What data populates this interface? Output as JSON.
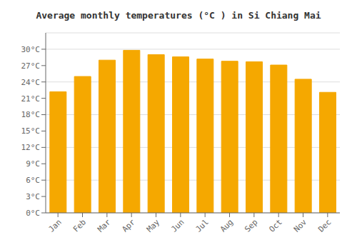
{
  "chart_data": {
    "type": "bar",
    "title": "Average monthly temperatures (°C ) in Si Chiang Mai",
    "categories": [
      "Jan",
      "Feb",
      "Mar",
      "Apr",
      "May",
      "Jun",
      "Jul",
      "Aug",
      "Sep",
      "Oct",
      "Nov",
      "Dec"
    ],
    "values": [
      22.2,
      25.0,
      28.0,
      29.8,
      29.0,
      28.6,
      28.2,
      27.8,
      27.7,
      27.1,
      24.5,
      22.1
    ],
    "color": "#F5A800",
    "ylim": [
      0,
      33
    ],
    "yticks": [
      {
        "value": 0,
        "label": "0°C"
      },
      {
        "value": 3,
        "label": "3°C"
      },
      {
        "value": 6,
        "label": "6°C"
      },
      {
        "value": 9,
        "label": "9°C"
      },
      {
        "value": 12,
        "label": "12°C"
      },
      {
        "value": 15,
        "label": "15°C"
      },
      {
        "value": 18,
        "label": "18°C"
      },
      {
        "value": 21,
        "label": "21°C"
      },
      {
        "value": 24,
        "label": "24°C"
      },
      {
        "value": 27,
        "label": "27°C"
      },
      {
        "value": 30,
        "label": "30°C"
      }
    ],
    "grid": true
  }
}
